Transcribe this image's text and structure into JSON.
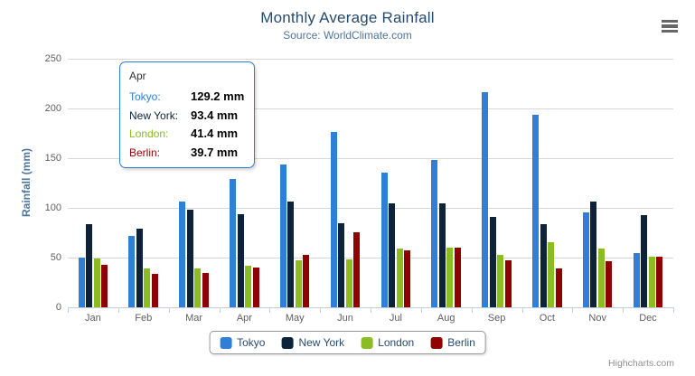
{
  "chart": {
    "title": "Monthly Average Rainfall",
    "subtitle": "Source: WorldClimate.com",
    "credits": "Highcharts.com"
  },
  "chart_data": {
    "type": "bar",
    "title": "Monthly Average Rainfall",
    "subtitle": "Source: WorldClimate.com",
    "categories": [
      "Jan",
      "Feb",
      "Mar",
      "Apr",
      "May",
      "Jun",
      "Jul",
      "Aug",
      "Sep",
      "Oct",
      "Nov",
      "Dec"
    ],
    "series": [
      {
        "name": "Tokyo",
        "color": "#2f7ed8",
        "values": [
          49.9,
          71.5,
          106.4,
          129.2,
          144.0,
          176.0,
          135.6,
          148.5,
          216.4,
          194.1,
          95.6,
          54.4
        ]
      },
      {
        "name": "New York",
        "color": "#0d233a",
        "values": [
          83.6,
          78.8,
          98.5,
          93.4,
          106.0,
          84.5,
          105.0,
          104.3,
          91.2,
          83.5,
          106.6,
          92.3
        ]
      },
      {
        "name": "London",
        "color": "#8bbc21",
        "values": [
          48.9,
          38.8,
          39.3,
          41.4,
          47.0,
          48.3,
          59.0,
          59.6,
          52.4,
          65.2,
          59.3,
          51.2
        ]
      },
      {
        "name": "Berlin",
        "color": "#910000",
        "values": [
          42.4,
          33.2,
          34.5,
          39.7,
          52.6,
          75.5,
          57.4,
          60.4,
          47.6,
          39.1,
          46.8,
          51.1
        ]
      }
    ],
    "xlabel": "",
    "ylabel": "Rainfall (mm)",
    "ylim": [
      0,
      250
    ],
    "yticks": [
      0,
      50,
      100,
      150,
      200,
      250
    ],
    "grid": true,
    "legend_position": "bottom"
  },
  "tooltip": {
    "header": "Apr",
    "border_color": "#2f7ed8",
    "rows": [
      {
        "label": "Tokyo:",
        "value": "129.2 mm",
        "color": "#2f7ed8"
      },
      {
        "label": "New York:",
        "value": "93.4 mm",
        "color": "#0d233a"
      },
      {
        "label": "London:",
        "value": "41.4 mm",
        "color": "#8bbc21"
      },
      {
        "label": "Berlin:",
        "value": "39.7 mm",
        "color": "#910000"
      }
    ]
  },
  "legend": {
    "items": [
      {
        "label": "Tokyo",
        "color": "#2f7ed8"
      },
      {
        "label": "New York",
        "color": "#0d233a"
      },
      {
        "label": "London",
        "color": "#8bbc21"
      },
      {
        "label": "Berlin",
        "color": "#910000"
      }
    ]
  },
  "colors": {
    "title_text": "#274b6d",
    "subtitle_text": "#4d759e",
    "axis_title": "#4d759e",
    "axis_label": "#606060",
    "grid_line": "#d8d8d8",
    "axis_line": "#c0d0e0",
    "legend_text": "#274b6d",
    "credits_text": "#909090"
  }
}
